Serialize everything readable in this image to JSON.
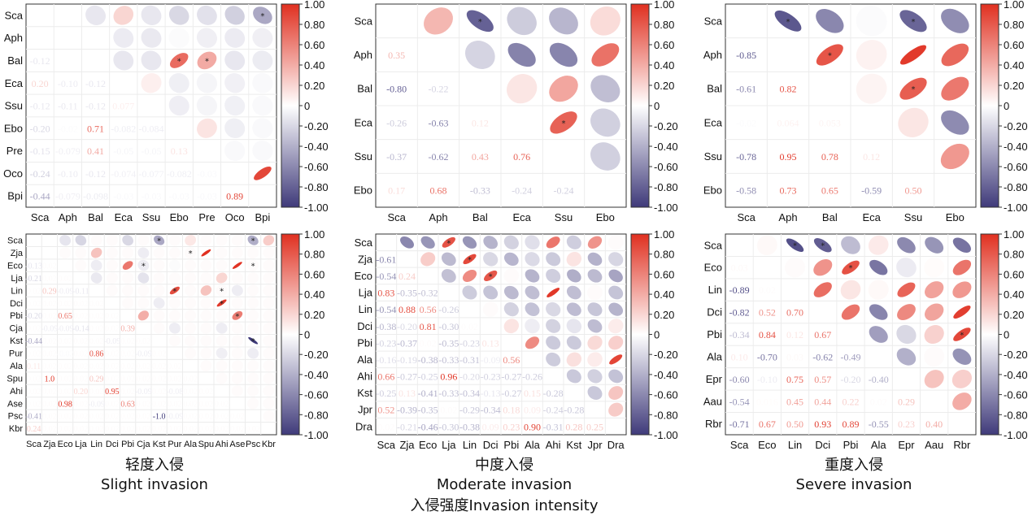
{
  "charts": [
    {
      "id": "slight",
      "caption_cn": "轻度入侵",
      "caption_en": "Slight invasion",
      "variables": [
        "Sca",
        "Aph",
        "Bal",
        "Eca",
        "Ssu",
        "Ebo",
        "Pre",
        "Oco",
        "Bpi"
      ],
      "sig": [
        [
          0,
          8
        ],
        [
          2,
          5
        ],
        [
          2,
          6
        ]
      ],
      "matrix": [
        [
          1,
          0,
          0,
          0,
          0,
          0,
          0,
          0,
          0
        ],
        [
          0,
          1,
          0,
          0,
          0,
          0,
          0,
          0,
          0
        ],
        [
          -0.12,
          0,
          1,
          0,
          0,
          0,
          0,
          0,
          0
        ],
        [
          0.2,
          -0.1,
          -0.12,
          1,
          0,
          0,
          0,
          0,
          0
        ],
        [
          -0.12,
          -0.11,
          -0.12,
          0.077,
          1,
          0,
          0,
          0,
          0
        ],
        [
          -0.2,
          -0.02,
          0.71,
          -0.082,
          -0.084,
          1,
          0,
          0,
          0
        ],
        [
          -0.15,
          -0.079,
          0.41,
          -0.05,
          -0.05,
          0.13,
          1,
          0,
          0
        ],
        [
          -0.24,
          -0.1,
          -0.12,
          -0.074,
          -0.077,
          -0.082,
          -0.03,
          1,
          0
        ],
        [
          -0.44,
          -0.079,
          -0.098,
          -0.03,
          -0.03,
          -0.03,
          -0.03,
          0.89,
          1
        ]
      ]
    },
    {
      "id": "moderate",
      "caption_cn": "中度入侵",
      "caption_en": "Moderate invasion",
      "variables": [
        "Sca",
        "Aph",
        "Bal",
        "Eca",
        "Ssu",
        "Ebo"
      ],
      "sig": [
        [
          0,
          2
        ],
        [
          3,
          4
        ]
      ],
      "matrix": [
        [
          1,
          0,
          0,
          0,
          0,
          0
        ],
        [
          0.35,
          1,
          0,
          0,
          0,
          0
        ],
        [
          -0.8,
          -0.22,
          1,
          0,
          0,
          0
        ],
        [
          -0.26,
          -0.63,
          0.12,
          1,
          0,
          0
        ],
        [
          -0.37,
          -0.62,
          0.43,
          0.76,
          1,
          0
        ],
        [
          0.17,
          0.68,
          -0.33,
          -0.24,
          -0.24,
          1
        ]
      ]
    },
    {
      "id": "severe",
      "caption_cn": "重度入侵",
      "caption_en": "Severe invasion",
      "variables": [
        "Sca",
        "Aph",
        "Bal",
        "Eca",
        "Ssu",
        "Ebo"
      ],
      "sig": [
        [
          0,
          1
        ],
        [
          0,
          4
        ],
        [
          1,
          2
        ],
        [
          2,
          4
        ]
      ],
      "matrix": [
        [
          1,
          0,
          0,
          0,
          0,
          0
        ],
        [
          -0.85,
          1,
          0,
          0,
          0,
          0
        ],
        [
          -0.61,
          0.82,
          1,
          0,
          0,
          0
        ],
        [
          -0.02,
          0.064,
          0.053,
          1,
          0,
          0
        ],
        [
          -0.78,
          0.95,
          0.78,
          0.12,
          1,
          0
        ],
        [
          -0.58,
          0.73,
          0.65,
          -0.59,
          0.5,
          1
        ]
      ]
    },
    {
      "id": "slight2",
      "variables": [
        "Sca",
        "Zja",
        "Eco",
        "Lja",
        "Lin",
        "Dci",
        "Pbi",
        "Cja",
        "Kst",
        "Pur",
        "Ala",
        "Spu",
        "Ahi",
        "Ase",
        "Psc",
        "Kbr"
      ],
      "sig": [
        [
          0,
          8
        ],
        [
          0,
          14
        ],
        [
          1,
          10
        ],
        [
          2,
          7
        ],
        [
          2,
          14
        ],
        [
          4,
          9
        ],
        [
          4,
          12
        ],
        [
          5,
          12
        ],
        [
          6,
          13
        ],
        [
          8,
          14
        ]
      ],
      "matrix": [
        [
          1,
          0,
          0,
          0,
          0,
          0,
          0,
          0,
          0,
          0,
          0,
          0,
          0,
          0,
          0,
          0
        ],
        [
          0,
          1,
          0,
          0,
          0,
          0,
          0,
          0,
          0,
          0,
          0,
          0,
          0,
          0,
          0,
          0
        ],
        [
          -0.13,
          0.02,
          1,
          0,
          0,
          0,
          0,
          0,
          0,
          0,
          0,
          0,
          0,
          0,
          0,
          0
        ],
        [
          -0.21,
          0.02,
          0.02,
          1,
          0,
          0,
          0,
          0,
          0,
          0,
          0,
          0,
          0,
          0,
          0,
          0
        ],
        [
          0.02,
          0.29,
          -0.09,
          -0.11,
          1,
          0,
          0,
          0,
          0,
          0,
          0,
          0,
          0,
          0,
          0,
          0
        ],
        [
          0.02,
          0.02,
          0.02,
          0.02,
          0.02,
          1,
          0,
          0,
          0,
          0,
          0,
          0,
          0,
          0,
          0,
          0
        ],
        [
          -0.2,
          0.02,
          0.65,
          0.02,
          0.02,
          0.02,
          1,
          0,
          0,
          0,
          0,
          0,
          0,
          0,
          0,
          0
        ],
        [
          0.02,
          -0.09,
          -0.09,
          -0.14,
          0.02,
          0.02,
          0.39,
          1,
          0,
          0,
          0,
          0,
          0,
          0,
          0,
          0
        ],
        [
          -0.44,
          0.02,
          0.02,
          0.02,
          0.02,
          -0.09,
          0.02,
          0.02,
          1,
          0,
          0,
          0,
          0,
          0,
          0,
          0
        ],
        [
          0.02,
          0.02,
          -0.02,
          0.02,
          0.86,
          0.02,
          0.02,
          -0.09,
          0.02,
          1,
          0,
          0,
          0,
          0,
          0,
          0
        ],
        [
          0.11,
          0.02,
          0.02,
          0.02,
          0.02,
          0.02,
          0.02,
          0.02,
          0.02,
          0.02,
          1,
          0,
          0,
          0,
          0,
          0
        ],
        [
          0.02,
          1.0,
          0.02,
          0.02,
          0.29,
          0.02,
          0.02,
          0.02,
          0.02,
          0.02,
          0.02,
          1,
          0,
          0,
          0,
          0
        ],
        [
          0.02,
          0.02,
          0.02,
          0.2,
          0.02,
          0.95,
          0.02,
          -0.09,
          0.02,
          -0.08,
          0.02,
          0.02,
          1,
          0,
          0,
          0
        ],
        [
          0.02,
          0.02,
          0.98,
          0.02,
          -0.09,
          0.02,
          0.63,
          0.02,
          0.02,
          0.02,
          0.02,
          0.02,
          0.02,
          1,
          0,
          0
        ],
        [
          -0.41,
          0.02,
          0.02,
          0.02,
          0.02,
          0.02,
          0.02,
          0.02,
          -1.0,
          -0.09,
          0.02,
          0.02,
          0.02,
          0.02,
          1,
          0
        ],
        [
          0.24,
          0.02,
          0.02,
          0.02,
          0.02,
          0.02,
          0.02,
          0.02,
          0.02,
          0.02,
          0.02,
          0.02,
          0.02,
          0.02,
          0.02,
          1
        ]
      ]
    },
    {
      "id": "moderate2",
      "variables": [
        "Sca",
        "Zja",
        "Eco",
        "Lja",
        "Lin",
        "Dci",
        "Pbi",
        "Ala",
        "Ahi",
        "Kst",
        "Jpr",
        "Dra"
      ],
      "sig": [
        [
          0,
          3
        ],
        [
          1,
          4
        ],
        [
          2,
          5
        ]
      ],
      "matrix": [
        [
          1,
          0,
          0,
          0,
          0,
          0,
          0,
          0,
          0,
          0,
          0,
          0
        ],
        [
          -0.61,
          1,
          0,
          0,
          0,
          0,
          0,
          0,
          0,
          0,
          0,
          0
        ],
        [
          -0.54,
          0.24,
          1,
          0,
          0,
          0,
          0,
          0,
          0,
          0,
          0,
          0
        ],
        [
          0.83,
          -0.35,
          -0.32,
          1,
          0,
          0,
          0,
          0,
          0,
          0,
          0,
          0
        ],
        [
          -0.54,
          0.88,
          0.56,
          -0.26,
          1,
          0,
          0,
          0,
          0,
          0,
          0,
          0
        ],
        [
          -0.38,
          -0.2,
          0.81,
          -0.3,
          0.02,
          1,
          0,
          0,
          0,
          0,
          0,
          0
        ],
        [
          -0.23,
          -0.37,
          0.02,
          -0.35,
          -0.23,
          0.13,
          1,
          0,
          0,
          0,
          0,
          0
        ],
        [
          -0.16,
          -0.19,
          -0.38,
          -0.33,
          -0.31,
          -0.09,
          0.56,
          1,
          0,
          0,
          0,
          0
        ],
        [
          0.66,
          -0.27,
          -0.25,
          0.96,
          -0.2,
          -0.23,
          -0.27,
          -0.26,
          1,
          0,
          0,
          0
        ],
        [
          -0.25,
          0.13,
          -0.41,
          -0.33,
          -0.34,
          -0.13,
          -0.27,
          0.15,
          -0.28,
          1,
          0,
          0
        ],
        [
          0.52,
          -0.39,
          -0.35,
          0.02,
          -0.29,
          -0.34,
          0.18,
          0.09,
          -0.24,
          -0.28,
          1,
          0
        ],
        [
          0.02,
          -0.21,
          -0.46,
          -0.3,
          -0.38,
          0.09,
          0.23,
          0.9,
          -0.31,
          0.28,
          0.25,
          1
        ]
      ]
    },
    {
      "id": "severe2",
      "variables": [
        "Sca",
        "Eco",
        "Lin",
        "Dci",
        "Pbi",
        "Ala",
        "Epr",
        "Aau",
        "Rbr"
      ],
      "sig": [
        [
          0,
          2
        ],
        [
          0,
          3
        ],
        [
          1,
          4
        ],
        [
          4,
          8
        ]
      ],
      "matrix": [
        [
          1,
          0,
          0,
          0,
          0,
          0,
          0,
          0,
          0
        ],
        [
          0.03,
          1,
          0,
          0,
          0,
          0,
          0,
          0,
          0
        ],
        [
          -0.89,
          0.02,
          1,
          0,
          0,
          0,
          0,
          0,
          0
        ],
        [
          -0.82,
          0.52,
          0.7,
          1,
          0,
          0,
          0,
          0,
          0
        ],
        [
          -0.34,
          0.84,
          0.12,
          0.67,
          1,
          0,
          0,
          0,
          0
        ],
        [
          0.1,
          -0.7,
          0.03,
          -0.62,
          -0.49,
          1,
          0,
          0,
          0
        ],
        [
          -0.6,
          -0.1,
          0.75,
          0.57,
          -0.2,
          -0.4,
          1,
          0,
          0
        ],
        [
          -0.54,
          0.016,
          0.45,
          0.44,
          0.22,
          0.02,
          0.29,
          1,
          0
        ],
        [
          -0.71,
          0.67,
          0.5,
          0.93,
          0.89,
          -0.55,
          0.23,
          0.4,
          1
        ]
      ]
    }
  ],
  "colorbar": {
    "ticks": [
      "1.00",
      "0.80",
      "0.60",
      "0.40",
      "0.20",
      "0",
      "-0.20",
      "-0.40",
      "-0.60",
      "-0.80",
      "-1.00"
    ],
    "colors": {
      "negative": "#3f3a7a",
      "zero": "#ffffff",
      "positive": "#e03020"
    }
  },
  "bottom_caption": "入侵强度Invasion intensity"
}
